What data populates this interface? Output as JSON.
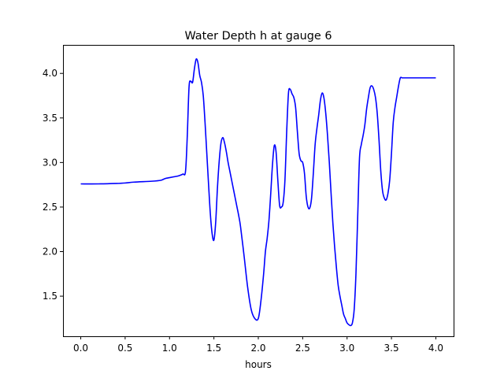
{
  "chart_data": {
    "type": "line",
    "title": "Water Depth h at gauge 6",
    "xlabel": "hours",
    "ylabel": "",
    "xlim": [
      -0.2,
      4.2
    ],
    "ylim": [
      1.05,
      4.32
    ],
    "xticks": [
      0.0,
      0.5,
      1.0,
      1.5,
      2.0,
      2.5,
      3.0,
      3.5,
      4.0
    ],
    "xtick_labels": [
      "0.0",
      "0.5",
      "1.0",
      "1.5",
      "2.0",
      "2.5",
      "3.0",
      "3.5",
      "4.0"
    ],
    "yticks": [
      1.5,
      2.0,
      2.5,
      3.0,
      3.5,
      4.0
    ],
    "ytick_labels": [
      "1.5",
      "2.0",
      "2.5",
      "3.0",
      "3.5",
      "4.0"
    ],
    "grid": false,
    "series": [
      {
        "color": "#0000ff",
        "x": [
          0.0,
          0.2,
          0.4,
          0.5,
          0.6,
          0.8,
          0.9,
          0.95,
          1.0,
          1.05,
          1.1,
          1.15,
          1.18,
          1.2,
          1.22,
          1.24,
          1.26,
          1.28,
          1.3,
          1.32,
          1.34,
          1.36,
          1.38,
          1.4,
          1.42,
          1.44,
          1.46,
          1.48,
          1.5,
          1.52,
          1.54,
          1.56,
          1.58,
          1.6,
          1.62,
          1.64,
          1.66,
          1.68,
          1.7,
          1.72,
          1.74,
          1.76,
          1.78,
          1.8,
          1.84,
          1.88,
          1.92,
          1.96,
          2.0,
          2.03,
          2.06,
          2.08,
          2.1,
          2.12,
          2.14,
          2.16,
          2.18,
          2.2,
          2.22,
          2.24,
          2.26,
          2.28,
          2.3,
          2.32,
          2.34,
          2.36,
          2.38,
          2.4,
          2.42,
          2.44,
          2.46,
          2.48,
          2.5,
          2.52,
          2.54,
          2.56,
          2.58,
          2.6,
          2.62,
          2.64,
          2.66,
          2.68,
          2.7,
          2.72,
          2.74,
          2.76,
          2.78,
          2.8,
          2.82,
          2.84,
          2.86,
          2.88,
          2.9,
          2.92,
          2.94,
          2.96,
          2.98,
          3.0,
          3.02,
          3.04,
          3.06,
          3.08,
          3.1,
          3.12,
          3.14,
          3.16,
          3.18,
          3.2,
          3.22,
          3.24,
          3.26,
          3.28,
          3.3,
          3.32,
          3.34,
          3.36,
          3.38,
          3.4,
          3.42,
          3.44,
          3.46,
          3.48,
          3.5,
          3.52,
          3.54,
          3.56,
          3.58,
          3.6,
          3.62,
          3.64,
          3.66,
          3.68,
          3.7,
          3.72,
          3.74,
          3.76,
          3.78,
          3.8,
          3.82,
          3.84,
          3.86,
          3.88,
          3.9,
          3.92,
          3.94,
          3.96,
          3.98,
          4.0
        ],
        "y": [
          2.76,
          2.76,
          2.765,
          2.77,
          2.78,
          2.79,
          2.8,
          2.82,
          2.83,
          2.84,
          2.85,
          2.87,
          2.9,
          3.3,
          3.85,
          3.91,
          3.9,
          4.05,
          4.16,
          4.12,
          3.98,
          3.9,
          3.75,
          3.45,
          3.1,
          2.75,
          2.42,
          2.2,
          2.13,
          2.33,
          2.72,
          3.02,
          3.22,
          3.28,
          3.22,
          3.12,
          3.0,
          2.9,
          2.8,
          2.7,
          2.6,
          2.5,
          2.4,
          2.28,
          1.95,
          1.6,
          1.35,
          1.25,
          1.25,
          1.45,
          1.75,
          2.0,
          2.15,
          2.35,
          2.65,
          2.98,
          3.19,
          3.12,
          2.8,
          2.52,
          2.5,
          2.55,
          2.8,
          3.35,
          3.78,
          3.82,
          3.77,
          3.73,
          3.62,
          3.35,
          3.1,
          3.02,
          3.0,
          2.88,
          2.62,
          2.5,
          2.49,
          2.6,
          2.88,
          3.2,
          3.38,
          3.53,
          3.7,
          3.78,
          3.72,
          3.55,
          3.3,
          3.0,
          2.65,
          2.32,
          2.05,
          1.82,
          1.62,
          1.5,
          1.4,
          1.3,
          1.25,
          1.2,
          1.18,
          1.17,
          1.2,
          1.35,
          1.75,
          2.4,
          3.05,
          3.2,
          3.3,
          3.42,
          3.6,
          3.73,
          3.84,
          3.86,
          3.82,
          3.73,
          3.55,
          3.25,
          2.9,
          2.68,
          2.6,
          2.58,
          2.65,
          2.8,
          3.1,
          3.45,
          3.62,
          3.74,
          3.86,
          3.95,
          3.95,
          3.95,
          3.95,
          3.95,
          3.95,
          3.95,
          3.95,
          3.95,
          3.95,
          3.95,
          3.95,
          3.95,
          3.95,
          3.95,
          3.95,
          3.95,
          3.95,
          3.95,
          3.95,
          3.95
        ]
      }
    ]
  }
}
